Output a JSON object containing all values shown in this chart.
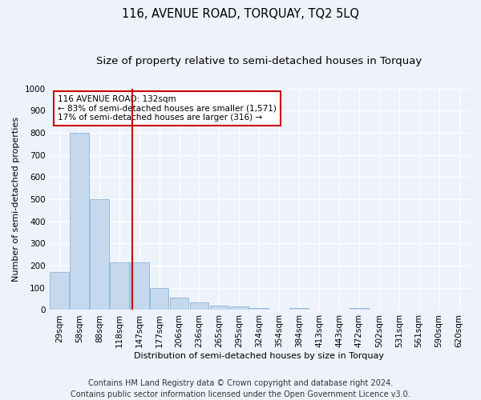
{
  "title": "116, AVENUE ROAD, TORQUAY, TQ2 5LQ",
  "subtitle": "Size of property relative to semi-detached houses in Torquay",
  "xlabel": "Distribution of semi-detached houses by size in Torquay",
  "ylabel": "Number of semi-detached properties",
  "categories": [
    "29sqm",
    "58sqm",
    "88sqm",
    "118sqm",
    "147sqm",
    "177sqm",
    "206sqm",
    "236sqm",
    "265sqm",
    "295sqm",
    "324sqm",
    "354sqm",
    "384sqm",
    "413sqm",
    "443sqm",
    "472sqm",
    "502sqm",
    "531sqm",
    "561sqm",
    "590sqm",
    "620sqm"
  ],
  "values": [
    170,
    800,
    500,
    215,
    215,
    100,
    55,
    35,
    20,
    15,
    10,
    0,
    10,
    0,
    0,
    10,
    0,
    0,
    0,
    0,
    0
  ],
  "bar_color": "#c5d8ee",
  "bar_edge_color": "#7aadd4",
  "red_line_x": 3.65,
  "annotation_text": "116 AVENUE ROAD: 132sqm\n← 83% of semi-detached houses are smaller (1,571)\n17% of semi-detached houses are larger (316) →",
  "annotation_box_color": "#ffffff",
  "annotation_box_edge": "#cc0000",
  "red_line_color": "#cc0000",
  "ylim": [
    0,
    1000
  ],
  "yticks": [
    0,
    100,
    200,
    300,
    400,
    500,
    600,
    700,
    800,
    900,
    1000
  ],
  "footer_line1": "Contains HM Land Registry data © Crown copyright and database right 2024.",
  "footer_line2": "Contains public sector information licensed under the Open Government Licence v3.0.",
  "bg_color": "#eef2fb",
  "grid_color": "#ffffff",
  "title_fontsize": 10.5,
  "subtitle_fontsize": 9.5,
  "axis_label_fontsize": 8,
  "tick_fontsize": 7.5,
  "footer_fontsize": 7
}
